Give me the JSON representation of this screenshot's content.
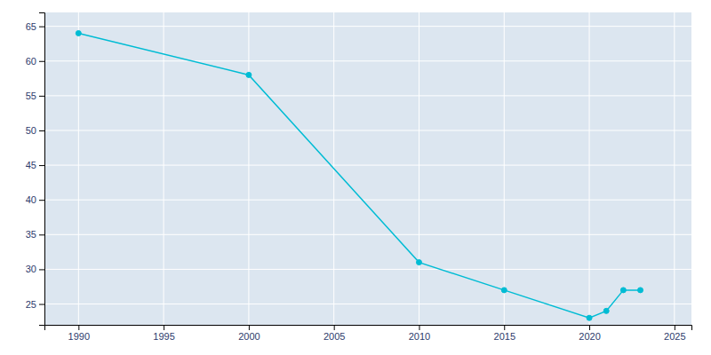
{
  "chart_data": {
    "type": "line",
    "x": [
      1990,
      2000,
      2010,
      2015,
      2020,
      2021,
      2022,
      2023
    ],
    "values": [
      64,
      58,
      31,
      27,
      23,
      24,
      27,
      27
    ],
    "color": "#00BCD4",
    "marker": "circle",
    "xlim": [
      1988,
      2026
    ],
    "ylim": [
      22,
      67
    ],
    "xticks": [
      1990,
      1995,
      2000,
      2005,
      2010,
      2015,
      2020,
      2025
    ],
    "yticks": [
      25,
      30,
      35,
      40,
      45,
      50,
      55,
      60,
      65
    ],
    "grid": true
  }
}
